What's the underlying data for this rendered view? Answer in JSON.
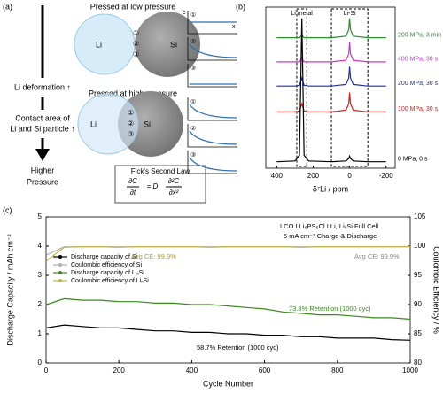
{
  "panel_a": {
    "label": "(a)",
    "arrow_labels": {
      "top": "Li deformation ↑",
      "middle": [
        "Contact area of",
        "Li and Si particle ↑"
      ],
      "bottom": [
        "Higher",
        "Pressure"
      ]
    },
    "low": {
      "title": "Pressed at low pressure",
      "particles": [
        "Li",
        "Si"
      ]
    },
    "high": {
      "title": "Pressed at high pressure",
      "particles": [
        "Li",
        "Si"
      ]
    },
    "markers": [
      "①",
      "②",
      "③"
    ],
    "mini_axis": [
      "c",
      "x"
    ],
    "fick": {
      "title": "Fick's Second Law",
      "lhs": [
        "∂C",
        "∂t"
      ],
      "equals": "= D",
      "rhs": [
        "∂²C",
        "∂x²"
      ]
    }
  },
  "chart_data": [
    {
      "type": "line",
      "panel_label": "(b)",
      "xlabel": "δ⁷Li / ppm",
      "x": [
        400,
        300,
        275,
        262,
        250,
        225,
        100,
        20,
        5,
        0,
        -5,
        -20,
        -100,
        -200
      ],
      "xlim": [
        460,
        -250
      ],
      "xticks": [
        400,
        200,
        0,
        -200
      ],
      "ylim": [
        0,
        10
      ],
      "regions": [
        {
          "label": "Li metal",
          "x": [
            290,
            235
          ]
        },
        {
          "label": "Li-Si",
          "x": [
            100,
            -100
          ]
        }
      ],
      "series": [
        {
          "name": "200 MPa, 3 min",
          "color": "#2e8b2e",
          "values": [
            8.1,
            8.1,
            8.1,
            8.25,
            8.1,
            8.1,
            8.1,
            8.2,
            8.6,
            9.3,
            8.6,
            8.2,
            8.1,
            8.1
          ]
        },
        {
          "name": "400 MPa, 30 s",
          "color": "#d030d0",
          "values": [
            6.6,
            6.6,
            6.6,
            6.85,
            6.6,
            6.6,
            6.6,
            6.7,
            7.1,
            7.8,
            7.1,
            6.7,
            6.6,
            6.6
          ]
        },
        {
          "name": "200 MPa, 30 s",
          "color": "#2030a0",
          "values": [
            5.1,
            5.1,
            5.15,
            5.6,
            5.15,
            5.1,
            5.1,
            5.2,
            5.6,
            6.3,
            5.6,
            5.2,
            5.1,
            5.1
          ]
        },
        {
          "name": "100 MPa, 30 s",
          "color": "#d02020",
          "values": [
            3.5,
            3.5,
            3.55,
            4.0,
            3.55,
            3.5,
            3.5,
            3.6,
            4.0,
            4.7,
            4.0,
            3.6,
            3.5,
            3.5
          ]
        },
        {
          "name": "0 MPa, 0 s",
          "color": "#000000",
          "values": [
            0.4,
            0.45,
            0.8,
            9.3,
            0.8,
            0.45,
            0.4,
            0.45,
            0.6,
            0.75,
            0.6,
            0.45,
            0.4,
            0.4
          ]
        }
      ]
    },
    {
      "type": "line",
      "panel_label": "(c)",
      "xlabel": "Cycle Number",
      "ylabel": "Discharge Capacity / mAh cm⁻²",
      "y2label": "Coulombic Efficiency / %",
      "x": [
        1,
        50,
        100,
        150,
        200,
        250,
        300,
        350,
        400,
        450,
        500,
        550,
        600,
        650,
        700,
        750,
        800,
        850,
        900,
        950,
        1000
      ],
      "xlim": [
        0,
        1000
      ],
      "xticks": [
        0,
        200,
        400,
        600,
        800,
        1000
      ],
      "ylim": [
        0,
        5
      ],
      "yticks": [
        0,
        1,
        2,
        3,
        4,
        5
      ],
      "y2lim": [
        80,
        105
      ],
      "y2ticks": [
        80,
        85,
        90,
        95,
        100,
        105
      ],
      "annotations": [
        "LCO I Li₆PS₅Cl I Li, LiₓSi Full Cell",
        "5 mA cm⁻² Charge & Discharge",
        "Avg CE: 99.9%",
        "Avg CE: 99.9%",
        "73.8% Retention (1000 cyc)",
        "58.7% Retention (1000 cyc)"
      ],
      "series": [
        {
          "name": "Discharge capacity of Si",
          "color": "#000000",
          "values": [
            1.2,
            1.3,
            1.25,
            1.2,
            1.2,
            1.15,
            1.1,
            1.1,
            1.05,
            1.05,
            1.0,
            1.0,
            0.95,
            0.95,
            0.9,
            0.9,
            0.85,
            0.85,
            0.85,
            0.8,
            0.78
          ]
        },
        {
          "name": "Coulombic efficiency of Si",
          "color": "#b0b0b0",
          "axis": "y2",
          "values": [
            98.5,
            99.9,
            99.9,
            99.9,
            99.9,
            99.9,
            99.9,
            99.9,
            99.9,
            99.9,
            99.9,
            99.9,
            99.9,
            99.9,
            99.9,
            99.9,
            99.9,
            99.9,
            99.9,
            99.9,
            99.9
          ]
        },
        {
          "name": "Discharge capacity of LiₓSi",
          "color": "#3a8a1e",
          "values": [
            2.0,
            2.2,
            2.15,
            2.15,
            2.1,
            2.1,
            2.05,
            2.05,
            2.0,
            2.0,
            1.95,
            1.9,
            1.85,
            1.75,
            1.7,
            1.65,
            1.65,
            1.6,
            1.55,
            1.55,
            1.5
          ]
        },
        {
          "name": "Coulombic efficiency of LiₓSi",
          "color": "#c2b445",
          "axis": "y2",
          "values": [
            97.5,
            99.8,
            99.9,
            99.9,
            99.8,
            99.9,
            99.9,
            99.9,
            99.9,
            99.8,
            99.9,
            99.9,
            99.9,
            99.9,
            99.8,
            99.9,
            99.9,
            99.9,
            99.9,
            99.9,
            99.9
          ]
        }
      ]
    }
  ]
}
